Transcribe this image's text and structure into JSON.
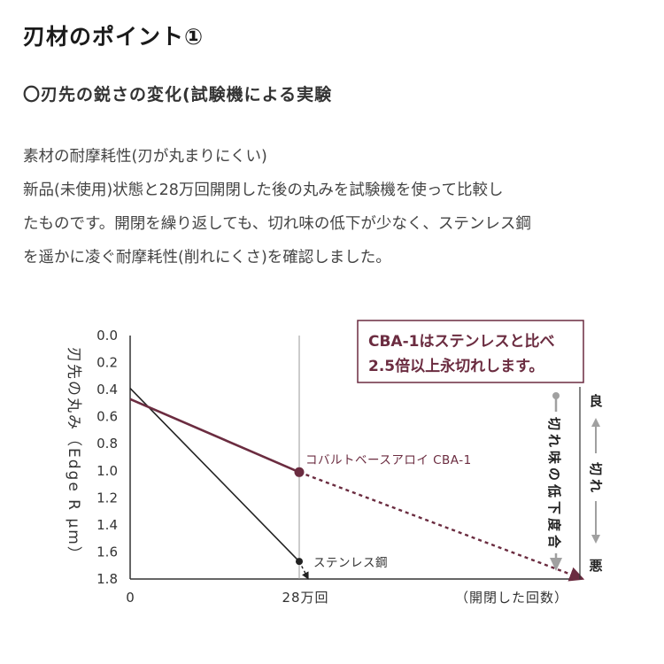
{
  "header": {
    "title": "刃材のポイント①",
    "subtitle": "〇刃先の鋭さの変化(試験機による実験"
  },
  "body": {
    "lines": [
      "素材の耐摩耗性(刃が丸まりにくい)",
      "新品(未使用)状態と28万回開閉した後の丸みを試験機を使って比較し",
      "たものです。開閉を繰り返しても、切れ味の低下が少なく、ステンレス鋼",
      "を遥かに凌ぐ耐摩耗性(削れにくさ)を確認しました。"
    ]
  },
  "colors": {
    "accent": "#6b2c40",
    "steel": "#222222",
    "arrow_gray": "#a0a0a0",
    "axis": "#333333"
  },
  "chart_data": {
    "type": "line",
    "ylabel": "刃先の丸み（Edge R μm）",
    "xlabel": "（開閉した回数）",
    "x_tick_labels": [
      "0",
      "28万回"
    ],
    "y_ticks": [
      "0.0",
      "0.2",
      "0.4",
      "0.6",
      "0.8",
      "1.0",
      "1.2",
      "1.4",
      "1.6",
      "1.8"
    ],
    "ylim": [
      0.0,
      1.8
    ],
    "y_inverted": true,
    "grid": "vertical line at 28万回",
    "series": [
      {
        "name": "コバルトベースアロイ CBA-1",
        "color": "#6b2c40",
        "points": [
          {
            "x": 0,
            "y": 0.47
          },
          {
            "x": 28,
            "y": 1.01
          }
        ],
        "projection": [
          {
            "x": 28,
            "y": 1.01
          },
          {
            "x": 75,
            "y": 1.8
          }
        ]
      },
      {
        "name": "ステンレス鋼",
        "color": "#222222",
        "points": [
          {
            "x": 0,
            "y": 0.39
          },
          {
            "x": 28,
            "y": 1.67
          }
        ],
        "projection": [
          {
            "x": 28,
            "y": 1.67
          },
          {
            "x": 29.5,
            "y": 1.8
          }
        ]
      }
    ],
    "callout": {
      "lines": [
        "CBA-1はステンレスと比べ",
        "2.5倍以上永切れします。"
      ]
    },
    "right_scale": {
      "top": "良",
      "middle": "切れ",
      "bottom": "悪",
      "side_label": "切れ味の低下度合"
    }
  }
}
